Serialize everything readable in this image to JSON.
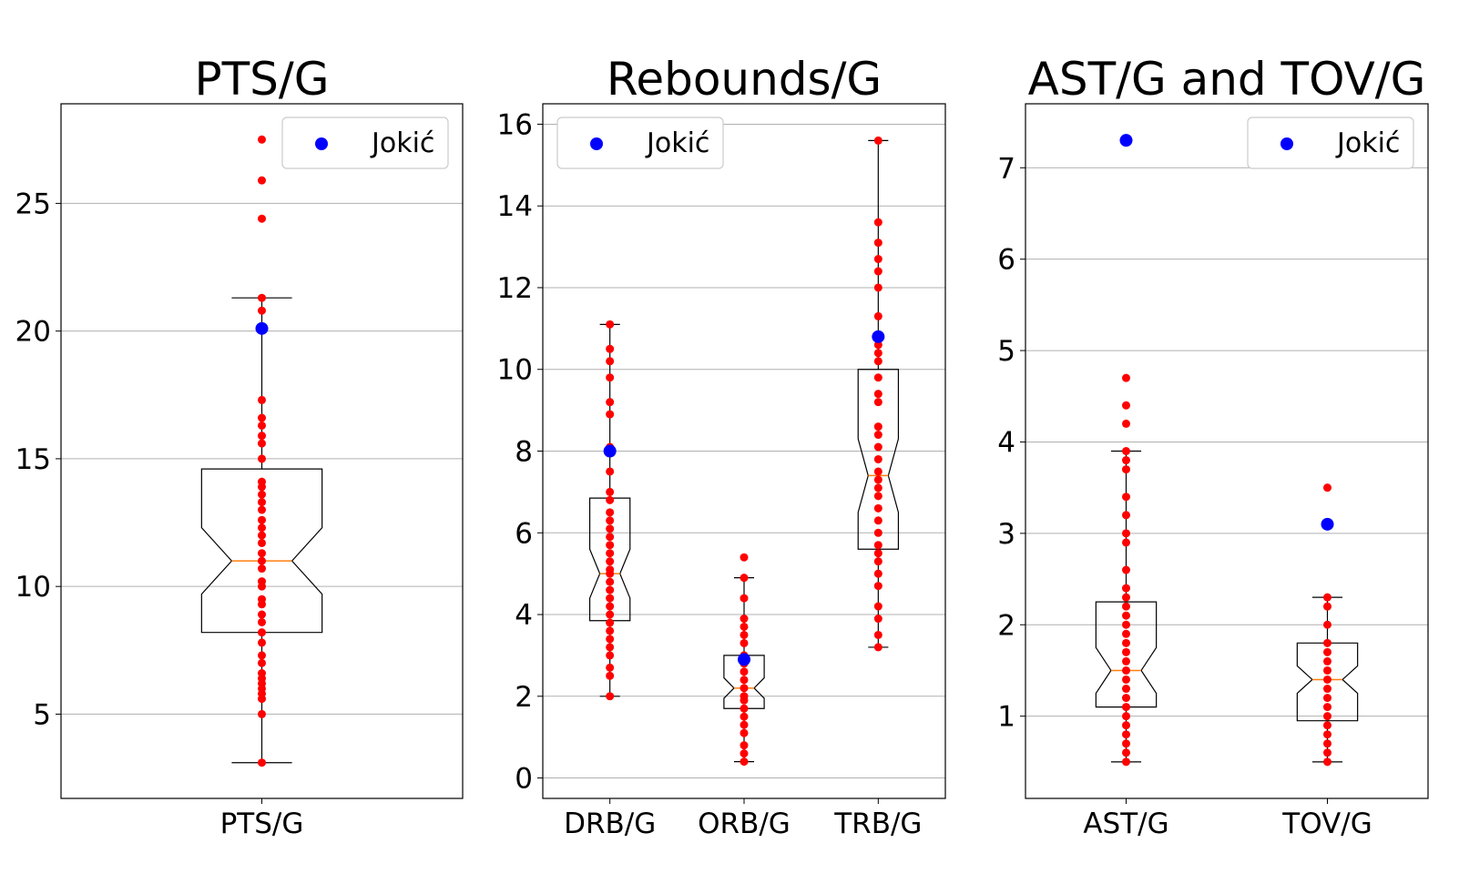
{
  "chart_data": [
    {
      "type": "box",
      "title": "PTS/G",
      "xlabel": "",
      "ylabel": "",
      "ylim": [
        1.7,
        28.9
      ],
      "yticks": [
        5,
        10,
        15,
        20,
        25
      ],
      "grid": "y",
      "legend": {
        "placement": "top-right",
        "label": "Jokić",
        "color": "#0000ff"
      },
      "categories": [
        "PTS/G"
      ],
      "boxes": [
        {
          "label": "PTS/G",
          "whisker_low": 3.1,
          "q1": 8.2,
          "median": 11.0,
          "q3": 14.6,
          "whisker_high": 21.3,
          "notch_low": 9.7,
          "notch_high": 12.3,
          "points": [
            3.1,
            5.0,
            5.6,
            5.8,
            6.0,
            6.2,
            6.4,
            6.6,
            7.0,
            7.3,
            7.8,
            8.2,
            8.6,
            8.9,
            9.3,
            9.5,
            10.0,
            10.2,
            10.7,
            11.0,
            11.3,
            11.7,
            12.0,
            12.3,
            12.6,
            13.0,
            13.3,
            13.6,
            13.9,
            14.1,
            15.0,
            15.6,
            15.9,
            16.3,
            16.6,
            17.3,
            20.8,
            21.3,
            24.4,
            25.9,
            27.5
          ],
          "highlight": 20.1
        }
      ],
      "colors": {
        "points": "#ff0000",
        "highlight": "#0000ff",
        "median": "#ff7f0e",
        "grid": "#b0b0b0"
      }
    },
    {
      "type": "box",
      "title": "Rebounds/G",
      "xlabel": "",
      "ylabel": "",
      "ylim": [
        -0.5,
        16.5
      ],
      "yticks": [
        0,
        2,
        4,
        6,
        8,
        10,
        12,
        14,
        16
      ],
      "grid": "y",
      "legend": {
        "placement": "top-left",
        "label": "Jokić",
        "color": "#0000ff"
      },
      "categories": [
        "DRB/G",
        "ORB/G",
        "TRB/G"
      ],
      "boxes": [
        {
          "label": "DRB/G",
          "whisker_low": 2.0,
          "q1": 3.85,
          "median": 5.0,
          "q3": 6.85,
          "whisker_high": 11.1,
          "notch_low": 4.4,
          "notch_high": 5.6,
          "points": [
            2.0,
            2.5,
            2.7,
            3.0,
            3.2,
            3.4,
            3.6,
            3.8,
            4.0,
            4.2,
            4.4,
            4.6,
            4.8,
            5.0,
            5.1,
            5.3,
            5.5,
            5.7,
            5.9,
            6.1,
            6.3,
            6.5,
            6.8,
            7.0,
            7.5,
            8.1,
            8.9,
            9.2,
            9.8,
            10.2,
            10.5,
            11.1
          ],
          "highlight": 8.0
        },
        {
          "label": "ORB/G",
          "whisker_low": 0.4,
          "q1": 1.7,
          "median": 2.2,
          "q3": 3.0,
          "whisker_high": 4.9,
          "notch_low": 1.95,
          "notch_high": 2.45,
          "points": [
            0.4,
            0.6,
            0.8,
            1.1,
            1.3,
            1.5,
            1.7,
            1.9,
            2.0,
            2.2,
            2.4,
            2.6,
            2.8,
            3.0,
            3.3,
            3.5,
            3.7,
            3.9,
            4.4,
            4.9,
            5.4
          ],
          "highlight": 2.9
        },
        {
          "label": "TRB/G",
          "whisker_low": 3.2,
          "q1": 5.6,
          "median": 7.4,
          "q3": 10.0,
          "whisker_high": 15.6,
          "notch_low": 6.5,
          "notch_high": 8.3,
          "points": [
            3.2,
            3.5,
            3.9,
            4.2,
            4.7,
            5.0,
            5.3,
            5.5,
            5.7,
            6.0,
            6.3,
            6.6,
            6.9,
            7.1,
            7.3,
            7.5,
            7.8,
            8.1,
            8.4,
            8.6,
            9.2,
            9.4,
            9.8,
            10.2,
            10.4,
            10.6,
            11.3,
            12.0,
            12.4,
            12.7,
            13.1,
            13.6,
            15.6
          ],
          "highlight": 10.8
        }
      ],
      "colors": {
        "points": "#ff0000",
        "highlight": "#0000ff",
        "median": "#ff7f0e",
        "grid": "#b0b0b0"
      }
    },
    {
      "type": "box",
      "title": "AST/G and TOV/G",
      "xlabel": "",
      "ylabel": "",
      "ylim": [
        0.1,
        7.7
      ],
      "yticks": [
        1,
        2,
        3,
        4,
        5,
        6,
        7
      ],
      "grid": "y",
      "legend": {
        "placement": "top-right",
        "label": "Jokić",
        "color": "#0000ff"
      },
      "categories": [
        "AST/G",
        "TOV/G"
      ],
      "boxes": [
        {
          "label": "AST/G",
          "whisker_low": 0.5,
          "q1": 1.1,
          "median": 1.5,
          "q3": 2.25,
          "whisker_high": 3.9,
          "notch_low": 1.25,
          "notch_high": 1.75,
          "points": [
            0.5,
            0.6,
            0.7,
            0.8,
            0.9,
            1.0,
            1.1,
            1.2,
            1.3,
            1.4,
            1.5,
            1.6,
            1.7,
            1.8,
            1.9,
            2.0,
            2.1,
            2.2,
            2.3,
            2.4,
            2.6,
            2.9,
            3.0,
            3.2,
            3.4,
            3.7,
            3.8,
            3.9,
            4.2,
            4.4,
            4.7
          ],
          "highlight": 7.3
        },
        {
          "label": "TOV/G",
          "whisker_low": 0.5,
          "q1": 0.95,
          "median": 1.4,
          "q3": 1.8,
          "whisker_high": 2.3,
          "notch_low": 1.25,
          "notch_high": 1.55,
          "points": [
            0.5,
            0.6,
            0.7,
            0.8,
            0.9,
            1.0,
            1.1,
            1.2,
            1.3,
            1.4,
            1.5,
            1.6,
            1.7,
            1.8,
            2.0,
            2.2,
            2.3,
            3.5
          ],
          "highlight": 3.1
        }
      ],
      "colors": {
        "points": "#ff0000",
        "highlight": "#0000ff",
        "median": "#ff7f0e",
        "grid": "#b0b0b0"
      }
    }
  ]
}
